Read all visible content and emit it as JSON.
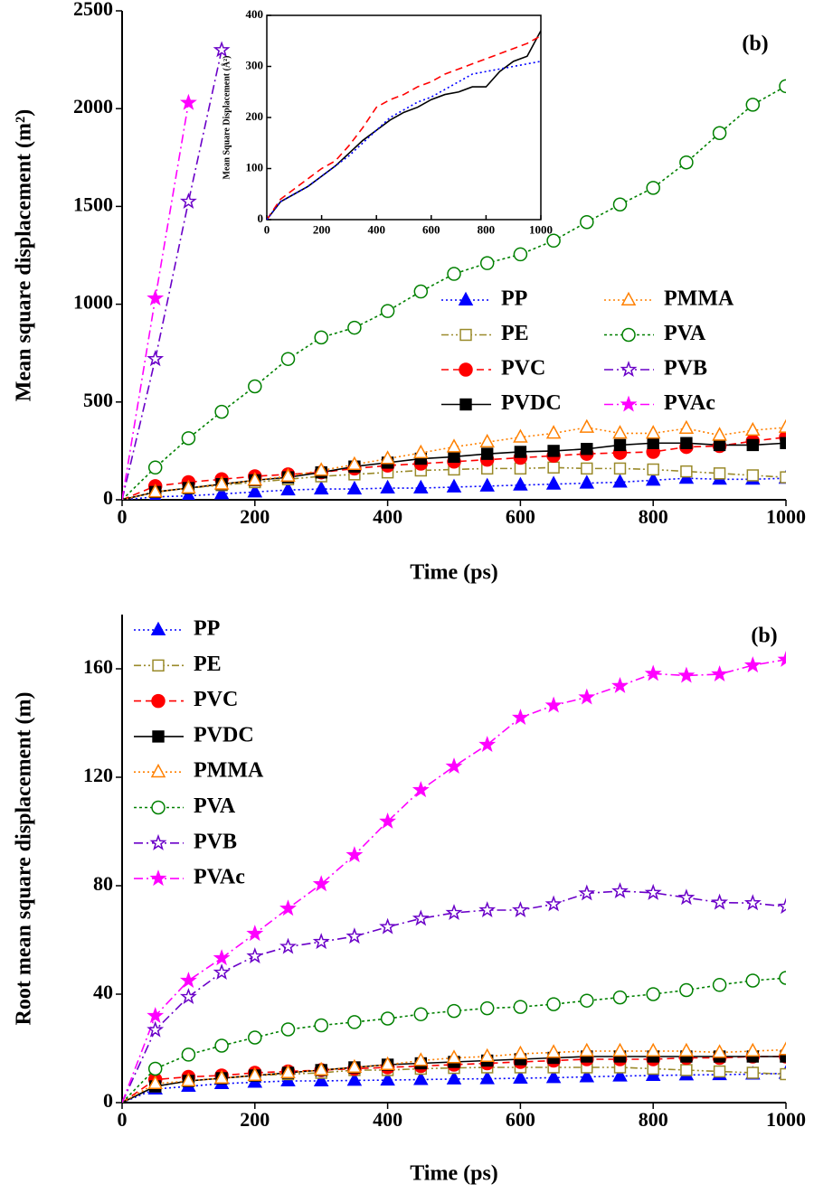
{
  "chart_data": [
    {
      "type": "line",
      "ylabel": "Mean square displacement (m²)",
      "xlabel": "Time (ps)",
      "annotation": "(b)",
      "x": [
        0,
        50,
        100,
        150,
        200,
        250,
        300,
        350,
        400,
        450,
        500,
        550,
        600,
        650,
        700,
        750,
        800,
        850,
        900,
        950,
        1000
      ],
      "xlim": [
        0,
        1000
      ],
      "xticks": [
        0,
        200,
        400,
        600,
        800,
        1000
      ],
      "ylim": [
        0,
        2500
      ],
      "yticks": [
        0,
        500,
        1000,
        1500,
        2000,
        2500
      ],
      "legend": "center-right",
      "series": [
        {
          "name": "PP",
          "color": "#0000ff",
          "marker": "triangle",
          "filled": true,
          "dash": "dotted",
          "values": [
            0,
            15,
            20,
            30,
            40,
            50,
            55,
            55,
            60,
            60,
            65,
            70,
            75,
            80,
            85,
            90,
            100,
            110,
            105,
            105,
            110
          ]
        },
        {
          "name": "PE",
          "color": "#9a8a2a",
          "marker": "square",
          "filled": false,
          "dash": "dashdotdot",
          "values": [
            0,
            40,
            60,
            75,
            90,
            105,
            120,
            130,
            140,
            150,
            155,
            160,
            160,
            165,
            160,
            160,
            155,
            145,
            135,
            125,
            115
          ]
        },
        {
          "name": "PVC",
          "color": "#ff0000",
          "marker": "circle",
          "filled": true,
          "dash": "dashed",
          "values": [
            0,
            70,
            90,
            105,
            120,
            130,
            140,
            160,
            175,
            185,
            195,
            205,
            215,
            225,
            235,
            240,
            245,
            270,
            275,
            300,
            320
          ]
        },
        {
          "name": "PVDC",
          "color": "#000000",
          "marker": "square",
          "filled": true,
          "dash": "solid",
          "values": [
            0,
            40,
            60,
            80,
            100,
            115,
            140,
            170,
            190,
            210,
            220,
            235,
            245,
            250,
            260,
            280,
            290,
            290,
            280,
            280,
            290
          ]
        },
        {
          "name": "PMMA",
          "color": "#ff8000",
          "marker": "triangle",
          "filled": false,
          "dash": "dotted",
          "values": [
            0,
            40,
            60,
            80,
            100,
            120,
            150,
            180,
            210,
            240,
            270,
            295,
            320,
            340,
            370,
            340,
            340,
            365,
            330,
            355,
            370
          ]
        },
        {
          "name": "PVA",
          "color": "#008000",
          "marker": "circle",
          "filled": false,
          "dash": "shortdash",
          "values": [
            0,
            165,
            315,
            450,
            580,
            720,
            830,
            880,
            965,
            1065,
            1155,
            1210,
            1255,
            1325,
            1420,
            1510,
            1595,
            1725,
            1875,
            2020,
            2115
          ]
        },
        {
          "name": "PVB",
          "color": "#6a00c8",
          "marker": "star",
          "filled": false,
          "dash": "dashdot",
          "values": [
            0,
            720,
            1525,
            2300,
            null,
            null,
            null,
            null,
            null,
            null,
            null,
            null,
            null,
            null,
            null,
            null,
            null,
            null,
            null,
            null,
            null
          ]
        },
        {
          "name": "PVAc",
          "color": "#ff00ff",
          "marker": "star",
          "filled": true,
          "dash": "dashdot",
          "values": [
            0,
            1030,
            2030,
            null,
            null,
            null,
            null,
            null,
            null,
            null,
            null,
            null,
            null,
            null,
            null,
            null,
            null,
            null,
            null,
            null,
            null
          ]
        }
      ]
    },
    {
      "type": "line",
      "ylabel": "Mean Square Displacement (Å²)",
      "x": [
        0,
        50,
        100,
        150,
        200,
        250,
        300,
        350,
        400,
        450,
        500,
        550,
        600,
        650,
        700,
        750,
        800,
        850,
        900,
        950,
        1000
      ],
      "xlim": [
        0,
        1000
      ],
      "xticks": [
        0,
        200,
        400,
        600,
        800,
        1000
      ],
      "ylim": [
        0,
        400
      ],
      "yticks": [
        0,
        100,
        200,
        300,
        400
      ],
      "series": [
        {
          "color": "#000000",
          "dash": "solid",
          "values": [
            0,
            35,
            50,
            65,
            85,
            105,
            130,
            155,
            175,
            195,
            210,
            220,
            235,
            245,
            250,
            260,
            260,
            290,
            310,
            320,
            370
          ]
        },
        {
          "color": "#ff0000",
          "dash": "dashed",
          "values": [
            0,
            40,
            60,
            80,
            100,
            115,
            145,
            180,
            220,
            235,
            245,
            260,
            270,
            285,
            295,
            305,
            315,
            325,
            335,
            345,
            360
          ]
        },
        {
          "color": "#0000ff",
          "dash": "dotted",
          "values": [
            0,
            35,
            50,
            65,
            85,
            105,
            125,
            150,
            175,
            200,
            215,
            230,
            240,
            255,
            270,
            285,
            290,
            295,
            300,
            305,
            310
          ]
        }
      ]
    },
    {
      "type": "line",
      "ylabel": "Root mean square displacement (m)",
      "xlabel": "Time (ps)",
      "annotation": "(b)",
      "x": [
        0,
        50,
        100,
        150,
        200,
        250,
        300,
        350,
        400,
        450,
        500,
        550,
        600,
        650,
        700,
        750,
        800,
        850,
        900,
        950,
        1000
      ],
      "xlim": [
        0,
        1000
      ],
      "xticks": [
        0,
        200,
        400,
        600,
        800,
        1000
      ],
      "ylim": [
        0,
        180
      ],
      "yticks": [
        0,
        40,
        80,
        120,
        160
      ],
      "legend": "upper-left",
      "series": [
        {
          "name": "PP",
          "color": "#0000ff",
          "marker": "triangle",
          "filled": true,
          "dash": "dotted",
          "values": [
            0,
            5,
            6,
            7,
            7.5,
            8,
            8,
            8.2,
            8.3,
            8.5,
            8.7,
            8.8,
            9,
            9.2,
            9.5,
            9.8,
            10,
            10.2,
            10.3,
            10.5,
            10.8
          ]
        },
        {
          "name": "PE",
          "color": "#9a8a2a",
          "marker": "square",
          "filled": false,
          "dash": "dashdotdot",
          "values": [
            0,
            6,
            8,
            9,
            10,
            10.5,
            11,
            12,
            12,
            12.5,
            12.8,
            13,
            13,
            13,
            13,
            13,
            12.5,
            12,
            11.5,
            11,
            10.5
          ]
        },
        {
          "name": "PVC",
          "color": "#ff0000",
          "marker": "circle",
          "filled": true,
          "dash": "dashed",
          "values": [
            0,
            8.5,
            9.5,
            10,
            11,
            11.5,
            12,
            12.5,
            13,
            13.5,
            14,
            14.5,
            15,
            15.5,
            16,
            16,
            16,
            16.5,
            16.5,
            17,
            17
          ]
        },
        {
          "name": "PVDC",
          "color": "#000000",
          "marker": "square",
          "filled": true,
          "dash": "solid",
          "values": [
            0,
            6,
            8,
            9,
            10,
            11,
            12,
            13,
            14,
            14.5,
            15,
            15.5,
            16,
            16.5,
            17,
            17,
            17,
            17,
            17,
            17,
            17
          ]
        },
        {
          "name": "PMMA",
          "color": "#ff8000",
          "marker": "triangle",
          "filled": false,
          "dash": "dotted",
          "values": [
            0,
            7,
            8,
            9,
            10,
            11,
            12,
            13,
            14,
            15.5,
            16.5,
            17,
            18,
            18.5,
            19,
            19,
            19,
            19,
            18.5,
            19,
            19.5
          ]
        },
        {
          "name": "PVA",
          "color": "#008000",
          "marker": "circle",
          "filled": false,
          "dash": "shortdash",
          "values": [
            0,
            12.5,
            17.7,
            21,
            24,
            27,
            28.5,
            29.7,
            31,
            32.6,
            33.8,
            34.8,
            35.3,
            36.3,
            37.6,
            38.8,
            40,
            41.5,
            43.4,
            45,
            46
          ]
        },
        {
          "name": "PVB",
          "color": "#6a00c8",
          "marker": "star",
          "filled": false,
          "dash": "dashdot",
          "values": [
            0,
            26.8,
            39,
            48,
            54,
            57.5,
            59.3,
            61.3,
            64.8,
            67.9,
            70,
            71,
            71,
            73.2,
            77.2,
            78,
            77.4,
            75.6,
            73.8,
            73.6,
            72.3
          ]
        },
        {
          "name": "PVAc",
          "color": "#ff00ff",
          "marker": "star",
          "filled": true,
          "dash": "dashdot",
          "values": [
            0,
            32,
            45,
            53.3,
            62.3,
            71.6,
            80.6,
            91.3,
            103.7,
            115.3,
            124,
            132,
            142,
            146.5,
            149.5,
            153.7,
            158.2,
            157.5,
            158,
            161.3,
            163.4
          ]
        }
      ]
    }
  ]
}
